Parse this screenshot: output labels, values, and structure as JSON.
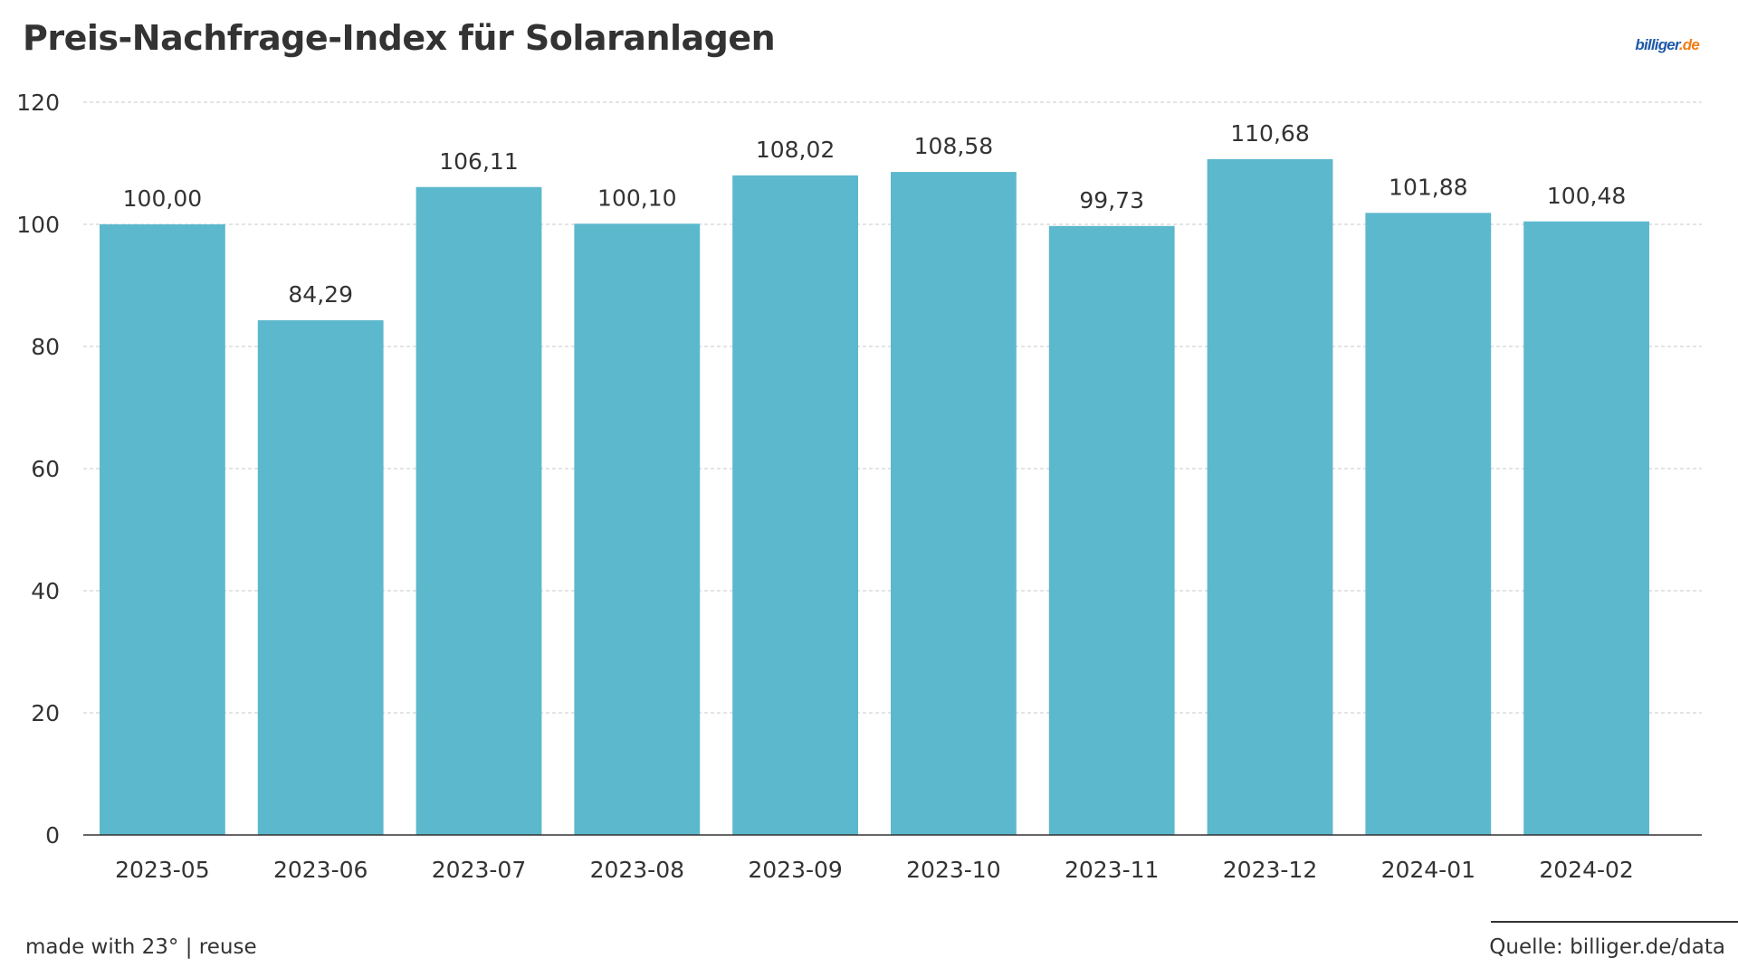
{
  "title": "Preis-Nachfrage-Index für Solaranlagen",
  "logo": {
    "main": "billiger",
    "tld": ".de"
  },
  "footer": {
    "credit": "made with 23° | reuse",
    "source": "Quelle: billiger.de/data"
  },
  "colors": {
    "bar": "#5cb8cd",
    "text": "#333333",
    "grid": "#c8c8c8",
    "baseline": "#333333",
    "logo_main": "#1f5aa8",
    "logo_tld": "#f07d16"
  },
  "chart_data": {
    "type": "bar",
    "title": "Preis-Nachfrage-Index für Solaranlagen",
    "xlabel": "",
    "ylabel": "",
    "categories": [
      "2023-05",
      "2023-06",
      "2023-07",
      "2023-08",
      "2023-09",
      "2023-10",
      "2023-11",
      "2023-12",
      "2024-01",
      "2024-02"
    ],
    "values": [
      100.0,
      84.29,
      106.11,
      100.1,
      108.02,
      108.58,
      99.73,
      110.68,
      101.88,
      100.48
    ],
    "value_labels": [
      "100,00",
      "84,29",
      "106,11",
      "100,10",
      "108,02",
      "108,58",
      "99,73",
      "110,68",
      "101,88",
      "100,48"
    ],
    "ylim": [
      0,
      120
    ],
    "yticks": [
      0,
      20,
      40,
      60,
      80,
      100,
      120
    ],
    "grid": true,
    "grid_style": "dashed horizontal",
    "legend": "none"
  }
}
